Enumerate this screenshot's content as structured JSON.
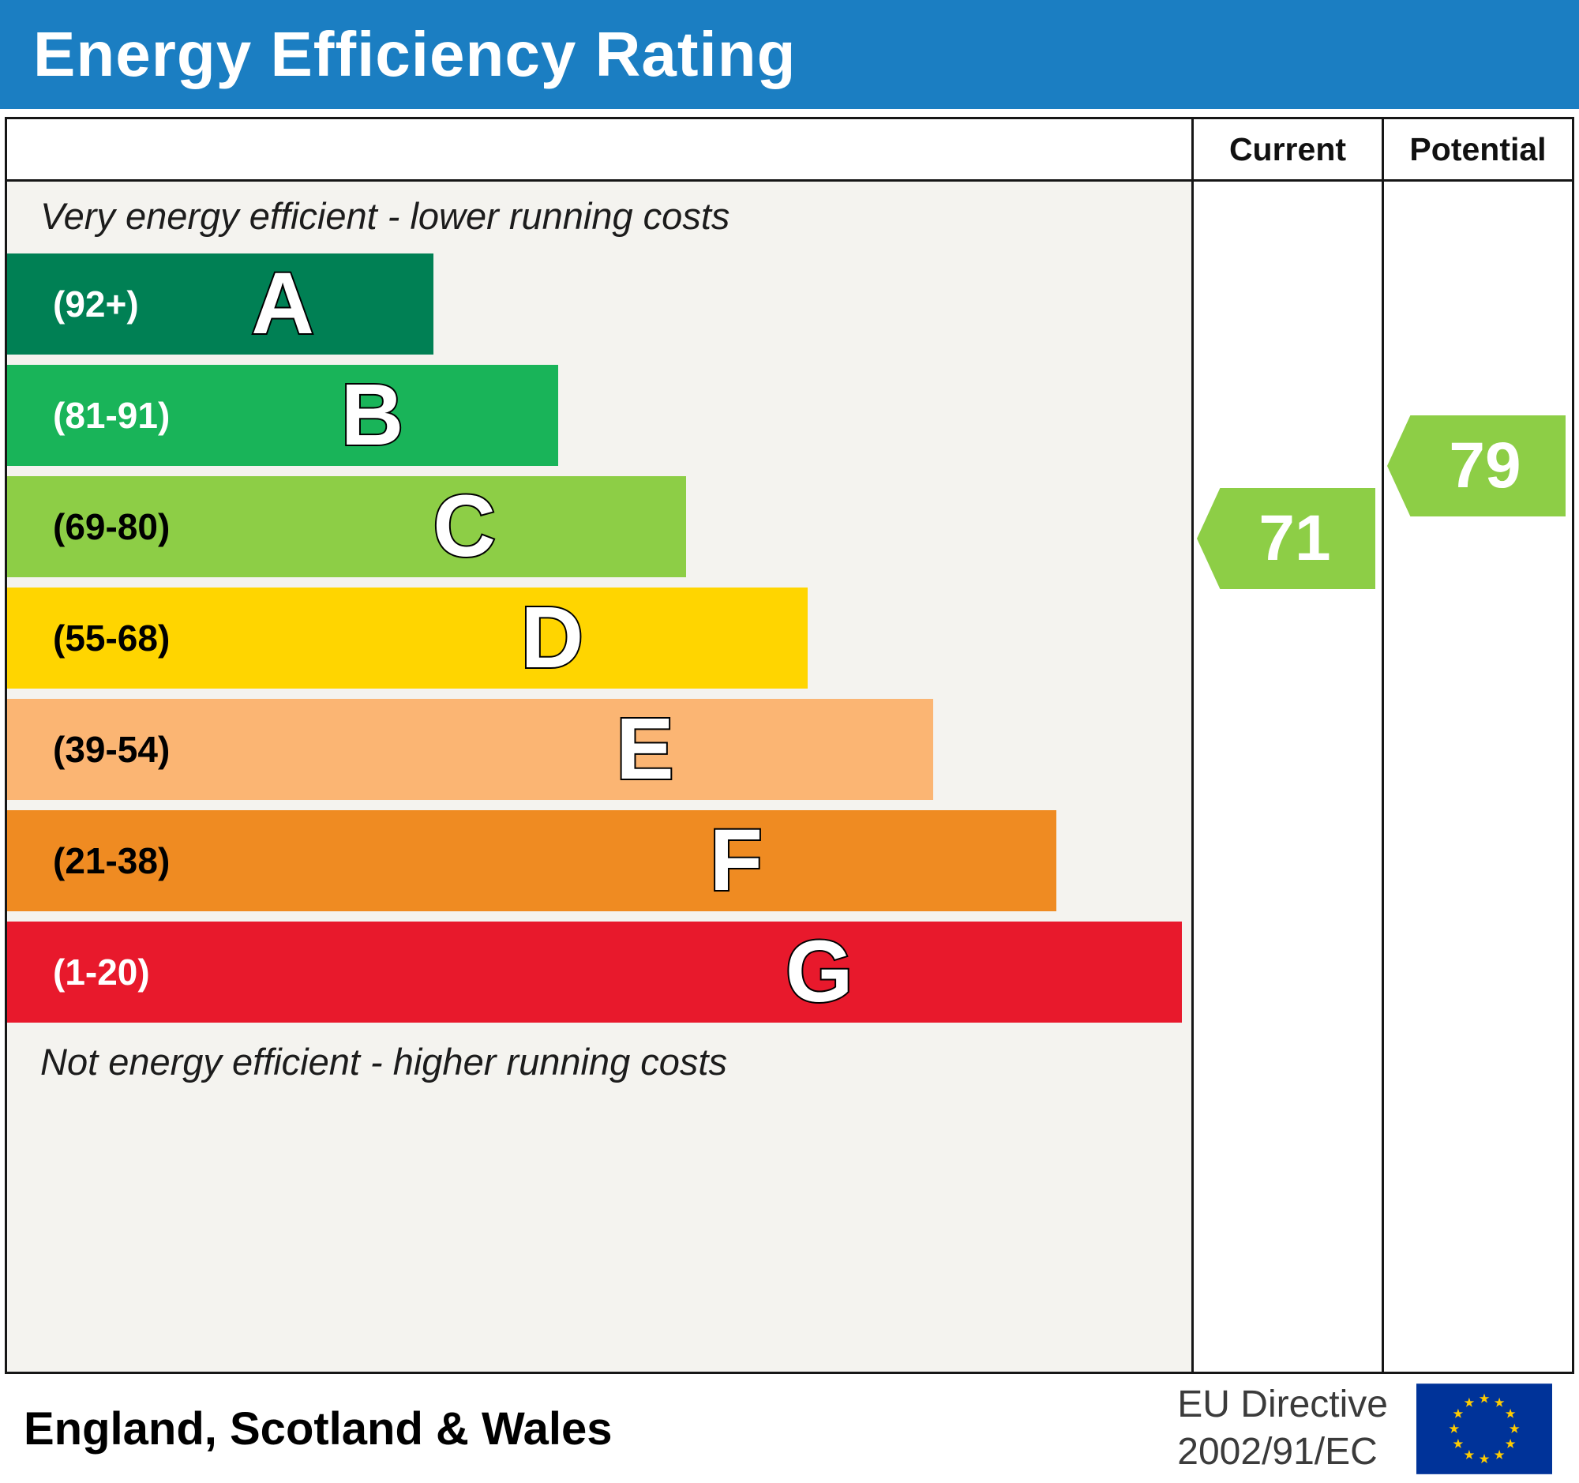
{
  "title": "Energy Efficiency Rating",
  "table": {
    "current_header": "Current",
    "potential_header": "Potential"
  },
  "notes": {
    "top": "Very energy efficient - lower running costs",
    "bottom": "Not energy efficient - higher running costs"
  },
  "bands": [
    {
      "letter": "A",
      "range": "(92+)",
      "color": "#008054",
      "text_color": "#ffffff",
      "width_pct": 36.0
    },
    {
      "letter": "B",
      "range": "(81-91)",
      "color": "#19b459",
      "text_color": "#ffffff",
      "width_pct": 46.5
    },
    {
      "letter": "C",
      "range": "(69-80)",
      "color": "#8dce46",
      "text_color": "#000000",
      "width_pct": 57.3
    },
    {
      "letter": "D",
      "range": "(55-68)",
      "color": "#ffd500",
      "text_color": "#000000",
      "width_pct": 67.6
    },
    {
      "letter": "E",
      "range": "(39-54)",
      "color": "#fbb573",
      "text_color": "#000000",
      "width_pct": 78.2
    },
    {
      "letter": "F",
      "range": "(21-38)",
      "color": "#ef8b22",
      "text_color": "#000000",
      "width_pct": 88.6
    },
    {
      "letter": "G",
      "range": "(1-20)",
      "color": "#e8192c",
      "text_color": "#ffffff",
      "width_pct": 99.2
    }
  ],
  "ratings": {
    "current": {
      "value": "71",
      "color": "#8dce46"
    },
    "potential": {
      "value": "79",
      "color": "#8dce46"
    }
  },
  "footer": {
    "region": "England, Scotland & Wales",
    "directive_line1": "EU Directive",
    "directive_line2": "2002/91/EC",
    "flag_colors": {
      "field": "#003399",
      "stars": "#ffcc00"
    }
  },
  "chart_data": {
    "type": "bar",
    "title": "Energy Efficiency Rating",
    "orientation": "horizontal",
    "categories": [
      "A",
      "B",
      "C",
      "D",
      "E",
      "F",
      "G"
    ],
    "category_ranges": [
      "(92+)",
      "(81-91)",
      "(69-80)",
      "(55-68)",
      "(39-54)",
      "(21-38)",
      "(1-20)"
    ],
    "bar_width_percent": [
      36.0,
      46.5,
      57.3,
      67.6,
      78.2,
      88.6,
      99.2
    ],
    "colors": [
      "#008054",
      "#19b459",
      "#8dce46",
      "#ffd500",
      "#fbb573",
      "#ef8b22",
      "#e8192c"
    ],
    "current_rating": 71,
    "potential_rating": 79,
    "current_band": "C",
    "potential_band": "C",
    "scale_min": 1,
    "scale_max": 100,
    "annotations": [
      "Very energy efficient - lower running costs",
      "Not energy efficient - higher running costs"
    ],
    "region": "England, Scotland & Wales",
    "directive": "EU Directive 2002/91/EC",
    "legend_position": "none",
    "grid": false
  }
}
